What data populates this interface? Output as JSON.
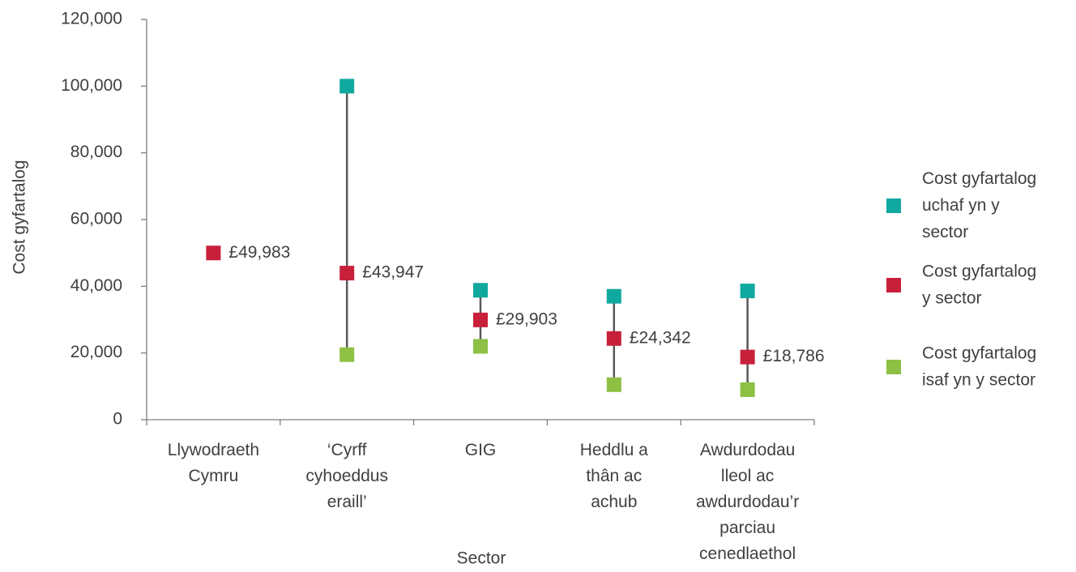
{
  "chart_data": {
    "type": "high-low-average",
    "x_label": "Sector",
    "y_label": "Cost gyfartalog",
    "categories": [
      "Llywodraeth\nCymru",
      "‘Cyrff\ncyhoeddus\neraill’",
      "GIG",
      "Heddlu a\nthân ac\nachub",
      "Awdurdodau\nlleol ac\nawdurdodau’r\nparciau\ncenedlaethol"
    ],
    "series": [
      {
        "name": "Cost gyfartalog\nuchaf yn y\nsector",
        "color": "#11a89f",
        "role": "high",
        "values": [
          null,
          100000,
          38800,
          37000,
          38600
        ]
      },
      {
        "name": "Cost gyfartalog\ny sector",
        "color": "#c8203b",
        "role": "average",
        "values": [
          49983,
          43947,
          29903,
          24342,
          18786
        ],
        "value_labels": [
          "£49,983",
          "£43,947",
          "£29,903",
          "£24,342",
          "£18,786"
        ]
      },
      {
        "name": "Cost gyfartalog\nisaf yn y sector",
        "color": "#8dc043",
        "role": "low",
        "values": [
          null,
          19500,
          22000,
          10500,
          9000
        ]
      }
    ],
    "ylim": [
      0,
      120000
    ],
    "yticks": [
      0,
      {
        "value": 20000,
        "label": "20,000"
      },
      {
        "value": 40000,
        "label": "40,000"
      },
      {
        "value": 60000,
        "label": "60,000"
      },
      {
        "value": 80000,
        "label": "80,000"
      },
      {
        "value": 100000,
        "label": "100,000"
      },
      {
        "value": 120000,
        "label": "120,000"
      }
    ],
    "legend": "right"
  }
}
